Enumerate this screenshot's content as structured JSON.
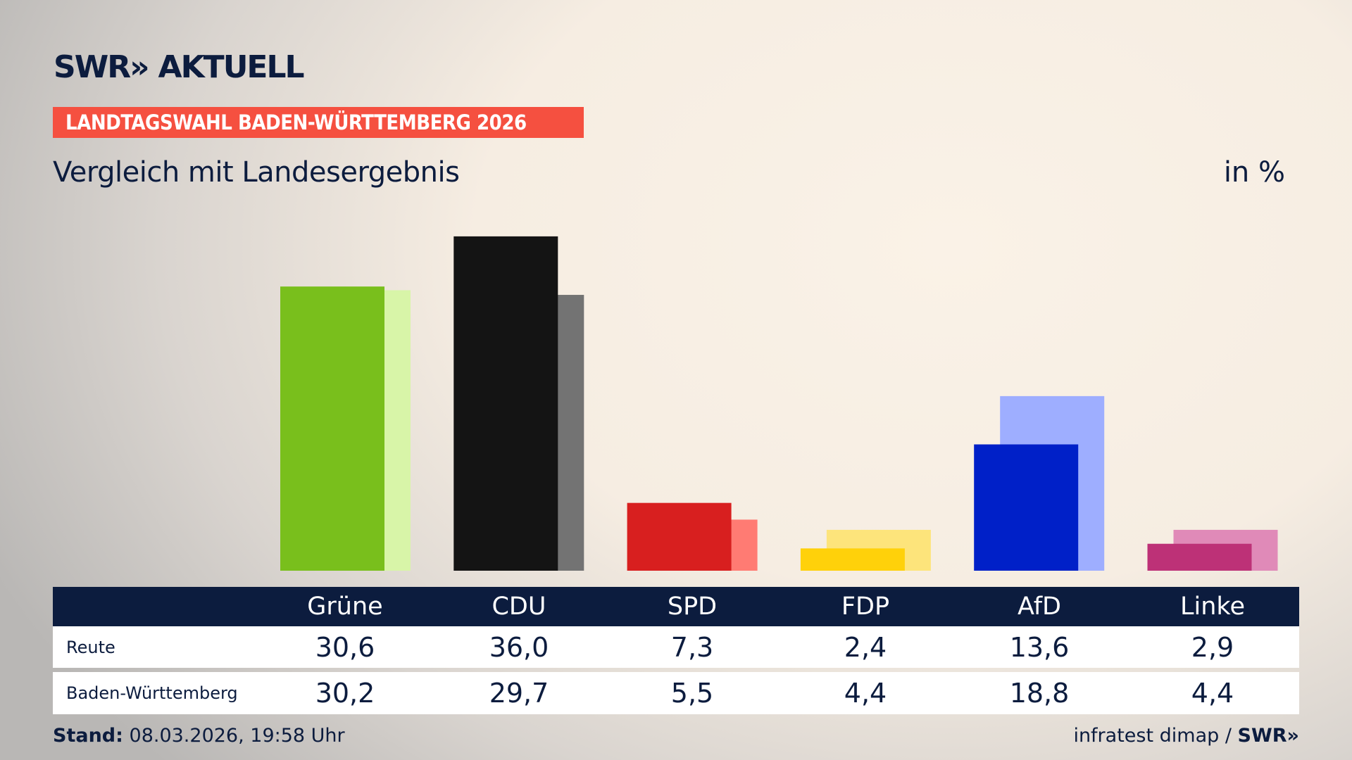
{
  "brand": {
    "logo": "SWR» AKTUELL",
    "logo_left": "SWR»",
    "logo_right": "AKTUELL"
  },
  "banner": "LANDTAGSWAHL BADEN-WÜRTTEMBERG 2026",
  "subtitle": "Vergleich mit Landesergebnis",
  "unit": "in %",
  "chart_data": {
    "type": "bar",
    "categories": [
      "Grüne",
      "CDU",
      "SPD",
      "FDP",
      "AfD",
      "Linke"
    ],
    "series": [
      {
        "name": "Reute",
        "values": [
          30.6,
          36.0,
          7.3,
          2.4,
          13.6,
          2.9
        ],
        "colors": [
          "#79bf1c",
          "#141414",
          "#d81f1f",
          "#ffd10a",
          "#0020c8",
          "#bd3177"
        ]
      },
      {
        "name": "Baden-Württemberg",
        "values": [
          30.2,
          29.7,
          5.5,
          4.4,
          18.8,
          4.4
        ],
        "colors": [
          "#d8f5a8",
          "#737373",
          "#ff7b73",
          "#fde47b",
          "#9eaeff",
          "#e08ab8"
        ]
      }
    ],
    "ylim": [
      0,
      36
    ]
  },
  "table": {
    "headers": [
      "Grüne",
      "CDU",
      "SPD",
      "FDP",
      "AfD",
      "Linke"
    ],
    "rows": [
      {
        "label": "Reute",
        "values": [
          "30,6",
          "36,0",
          "7,3",
          "2,4",
          "13,6",
          "2,9"
        ]
      },
      {
        "label": "Baden-Württemberg",
        "values": [
          "30,2",
          "29,7",
          "5,5",
          "4,4",
          "18,8",
          "4,4"
        ]
      }
    ]
  },
  "footer": {
    "stand_label": "Stand:",
    "stand_value": "08.03.2026, 19:58 Uhr",
    "source": "infratest dimap / ",
    "source_logo": "SWR»"
  },
  "colors": {
    "navy": "#0c1c3e",
    "banner": "#f55040"
  }
}
